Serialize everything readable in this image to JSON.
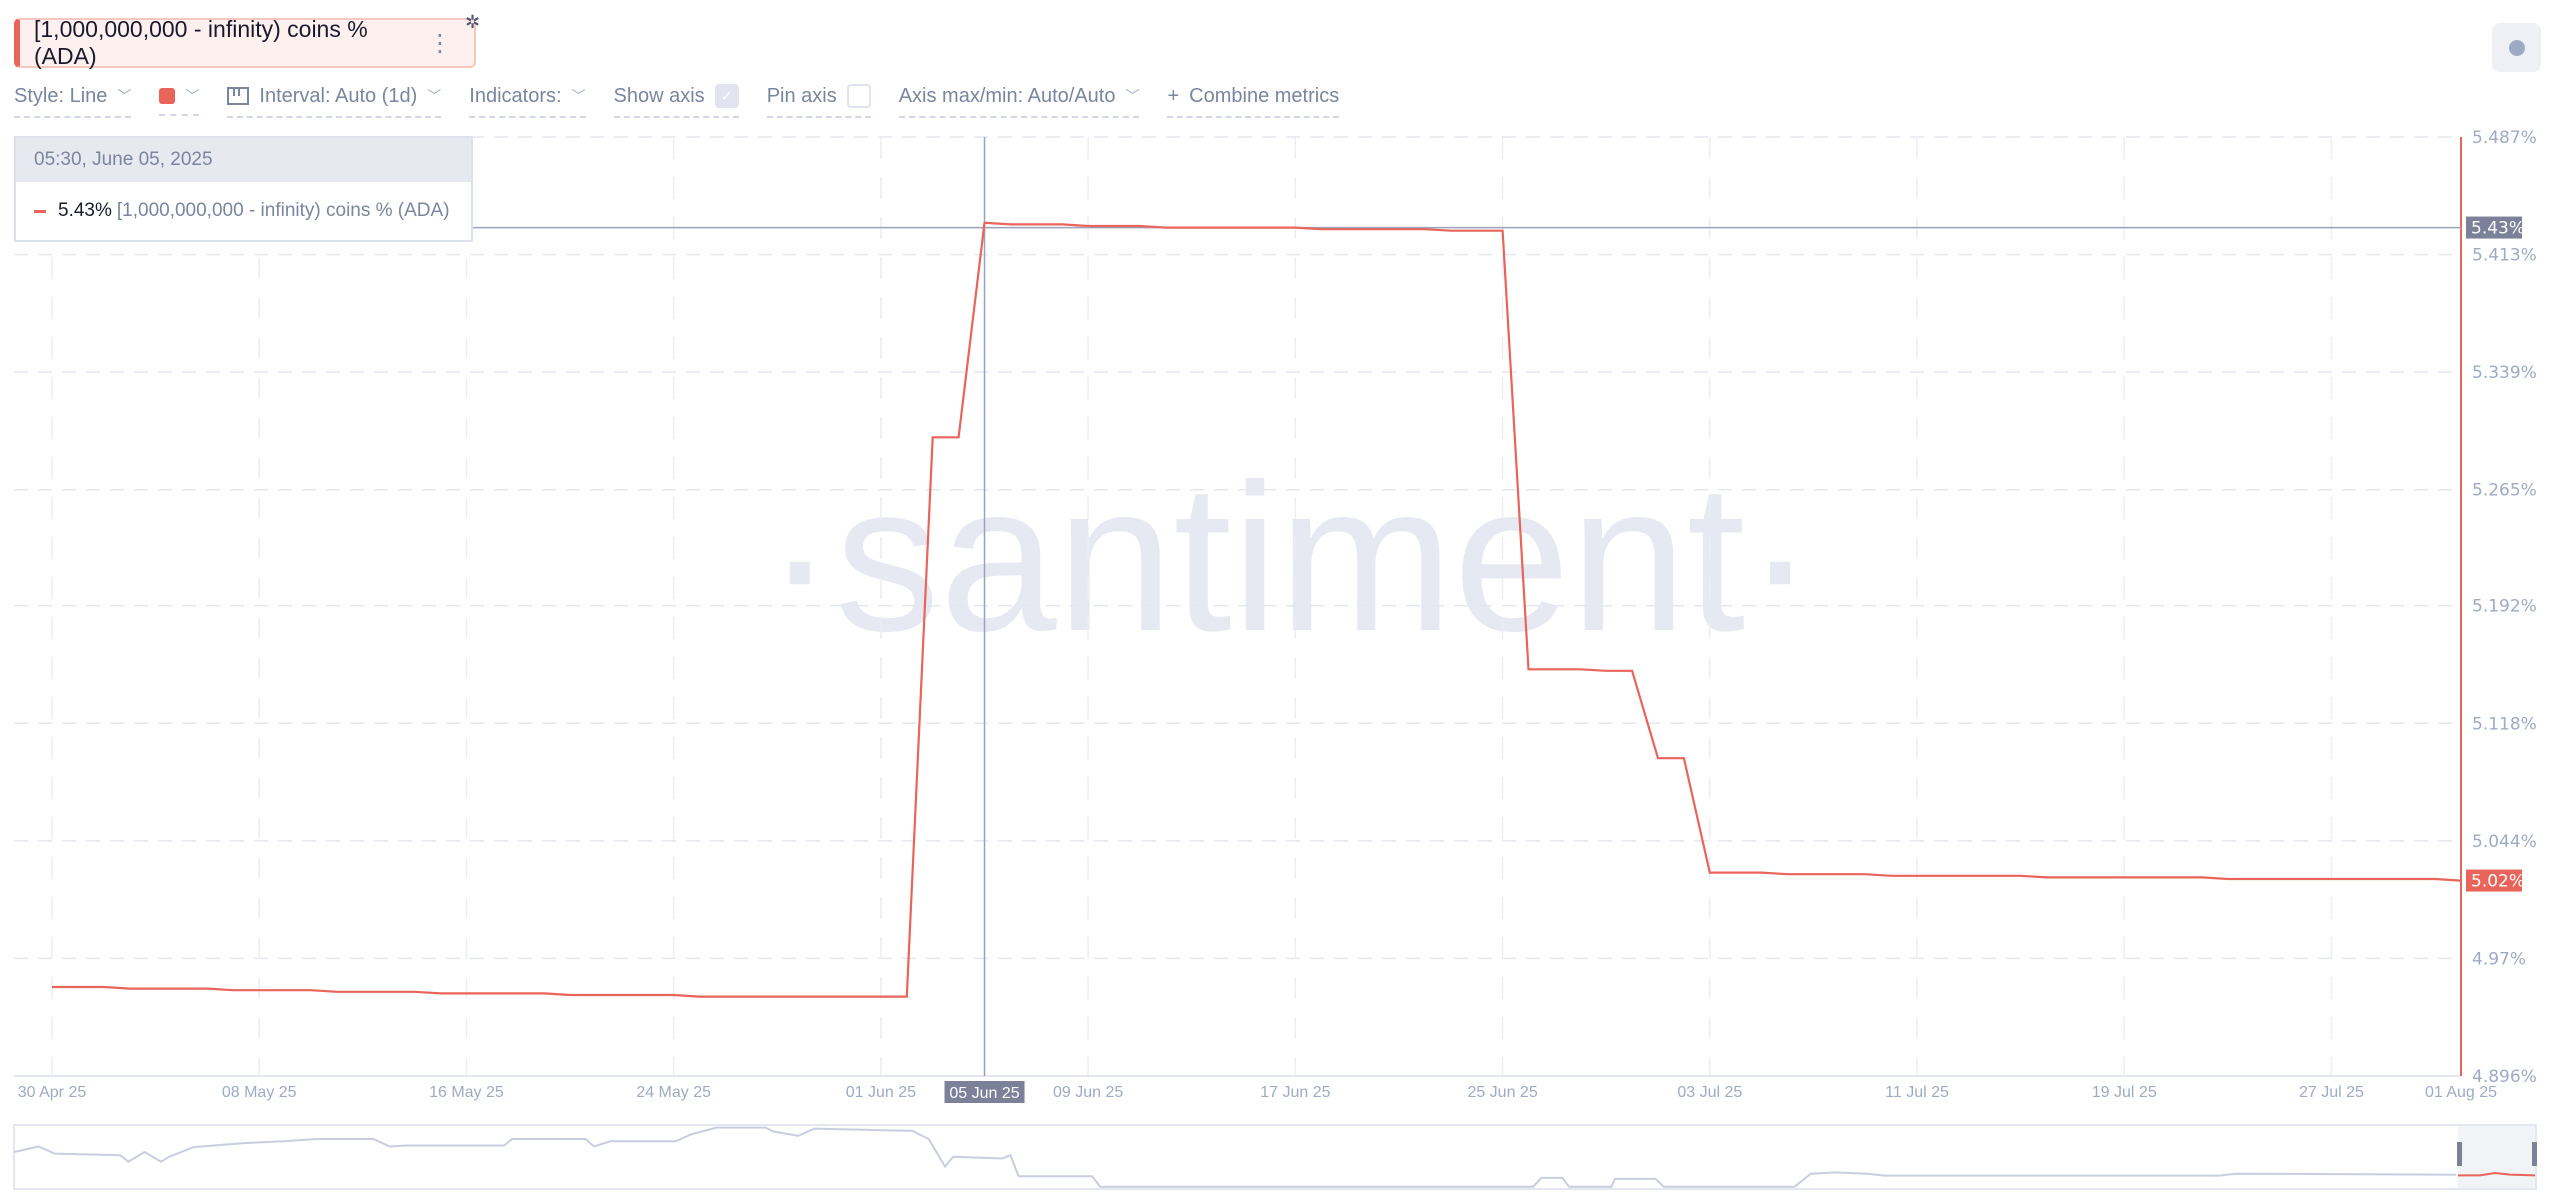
{
  "metric_chip": {
    "label": "[1,000,000,000 - infinity) coins % (ADA)",
    "menu_icon": "vertical-dots-icon",
    "settings_icon": "gear-icon"
  },
  "record_button": {
    "icon": "record-dot-icon"
  },
  "toolbar": {
    "style": "Style: Line",
    "color": "#e9645a",
    "interval": "Interval: Auto (1d)",
    "indicators": "Indicators:",
    "show_axis": "Show axis",
    "show_axis_checked": true,
    "pin_axis": "Pin axis",
    "pin_axis_checked": false,
    "axis_maxmin": "Axis max/min: Auto/Auto",
    "combine_plus": "+",
    "combine": "Combine metrics"
  },
  "tooltip": {
    "date": "05:30, June 05, 2025",
    "value": "5.43%",
    "series": "[1,000,000,000 - infinity) coins % (ADA)"
  },
  "watermark": "·santiment·",
  "chart_data": {
    "type": "line",
    "title": "",
    "xlabel": "",
    "ylabel": "",
    "grid": true,
    "ylim": [
      4.896,
      5.487
    ],
    "y_ticks": [
      "5.487%",
      "5.413%",
      "5.339%",
      "5.265%",
      "5.192%",
      "5.118%",
      "5.044%",
      "4.97%",
      "4.896%"
    ],
    "y_tick_values": [
      5.487,
      5.413,
      5.339,
      5.265,
      5.192,
      5.118,
      5.044,
      4.97,
      4.896
    ],
    "x_ticks": [
      "30 Apr 25",
      "08 May 25",
      "16 May 25",
      "24 May 25",
      "01 Jun 25",
      "09 Jun 25",
      "17 Jun 25",
      "25 Jun 25",
      "03 Jul 25",
      "11 Jul 25",
      "19 Jul 25",
      "27 Jul 25",
      "01 Aug 25"
    ],
    "x_tick_dates": [
      "2025-04-30",
      "2025-05-08",
      "2025-05-16",
      "2025-05-24",
      "2025-06-01",
      "2025-06-09",
      "2025-06-17",
      "2025-06-25",
      "2025-07-03",
      "2025-07-11",
      "2025-07-19",
      "2025-07-27",
      "2025-08-01"
    ],
    "xlim": [
      "2025-04-30",
      "2025-08-01"
    ],
    "crosshair": {
      "date": "2025-06-05",
      "date_label": "05 Jun 25",
      "value": 5.43,
      "value_label": "5.43%"
    },
    "last_value_label": "5.02%",
    "series": [
      {
        "name": "[1,000,000,000 - infinity) coins % (ADA)",
        "color": "#e9645a",
        "start": "2025-04-30",
        "step": "1d",
        "values": [
          4.952,
          4.952,
          4.952,
          4.951,
          4.951,
          4.951,
          4.951,
          4.95,
          4.95,
          4.95,
          4.95,
          4.949,
          4.949,
          4.949,
          4.949,
          4.948,
          4.948,
          4.948,
          4.948,
          4.948,
          4.947,
          4.947,
          4.947,
          4.947,
          4.947,
          4.946,
          4.946,
          4.946,
          4.946,
          4.946,
          4.946,
          4.946,
          4.946,
          4.946,
          5.298,
          5.298,
          5.433,
          5.432,
          5.432,
          5.432,
          5.431,
          5.431,
          5.431,
          5.43,
          5.43,
          5.43,
          5.43,
          5.43,
          5.43,
          5.429,
          5.429,
          5.429,
          5.429,
          5.429,
          5.428,
          5.428,
          5.428,
          5.152,
          5.152,
          5.152,
          5.151,
          5.151,
          5.096,
          5.096,
          5.024,
          5.024,
          5.024,
          5.023,
          5.023,
          5.023,
          5.023,
          5.022,
          5.022,
          5.022,
          5.022,
          5.022,
          5.022,
          5.021,
          5.021,
          5.021,
          5.021,
          5.021,
          5.021,
          5.021,
          5.02,
          5.02,
          5.02,
          5.02,
          5.02,
          5.02,
          5.02,
          5.02,
          5.02,
          5.019
        ]
      }
    ]
  }
}
